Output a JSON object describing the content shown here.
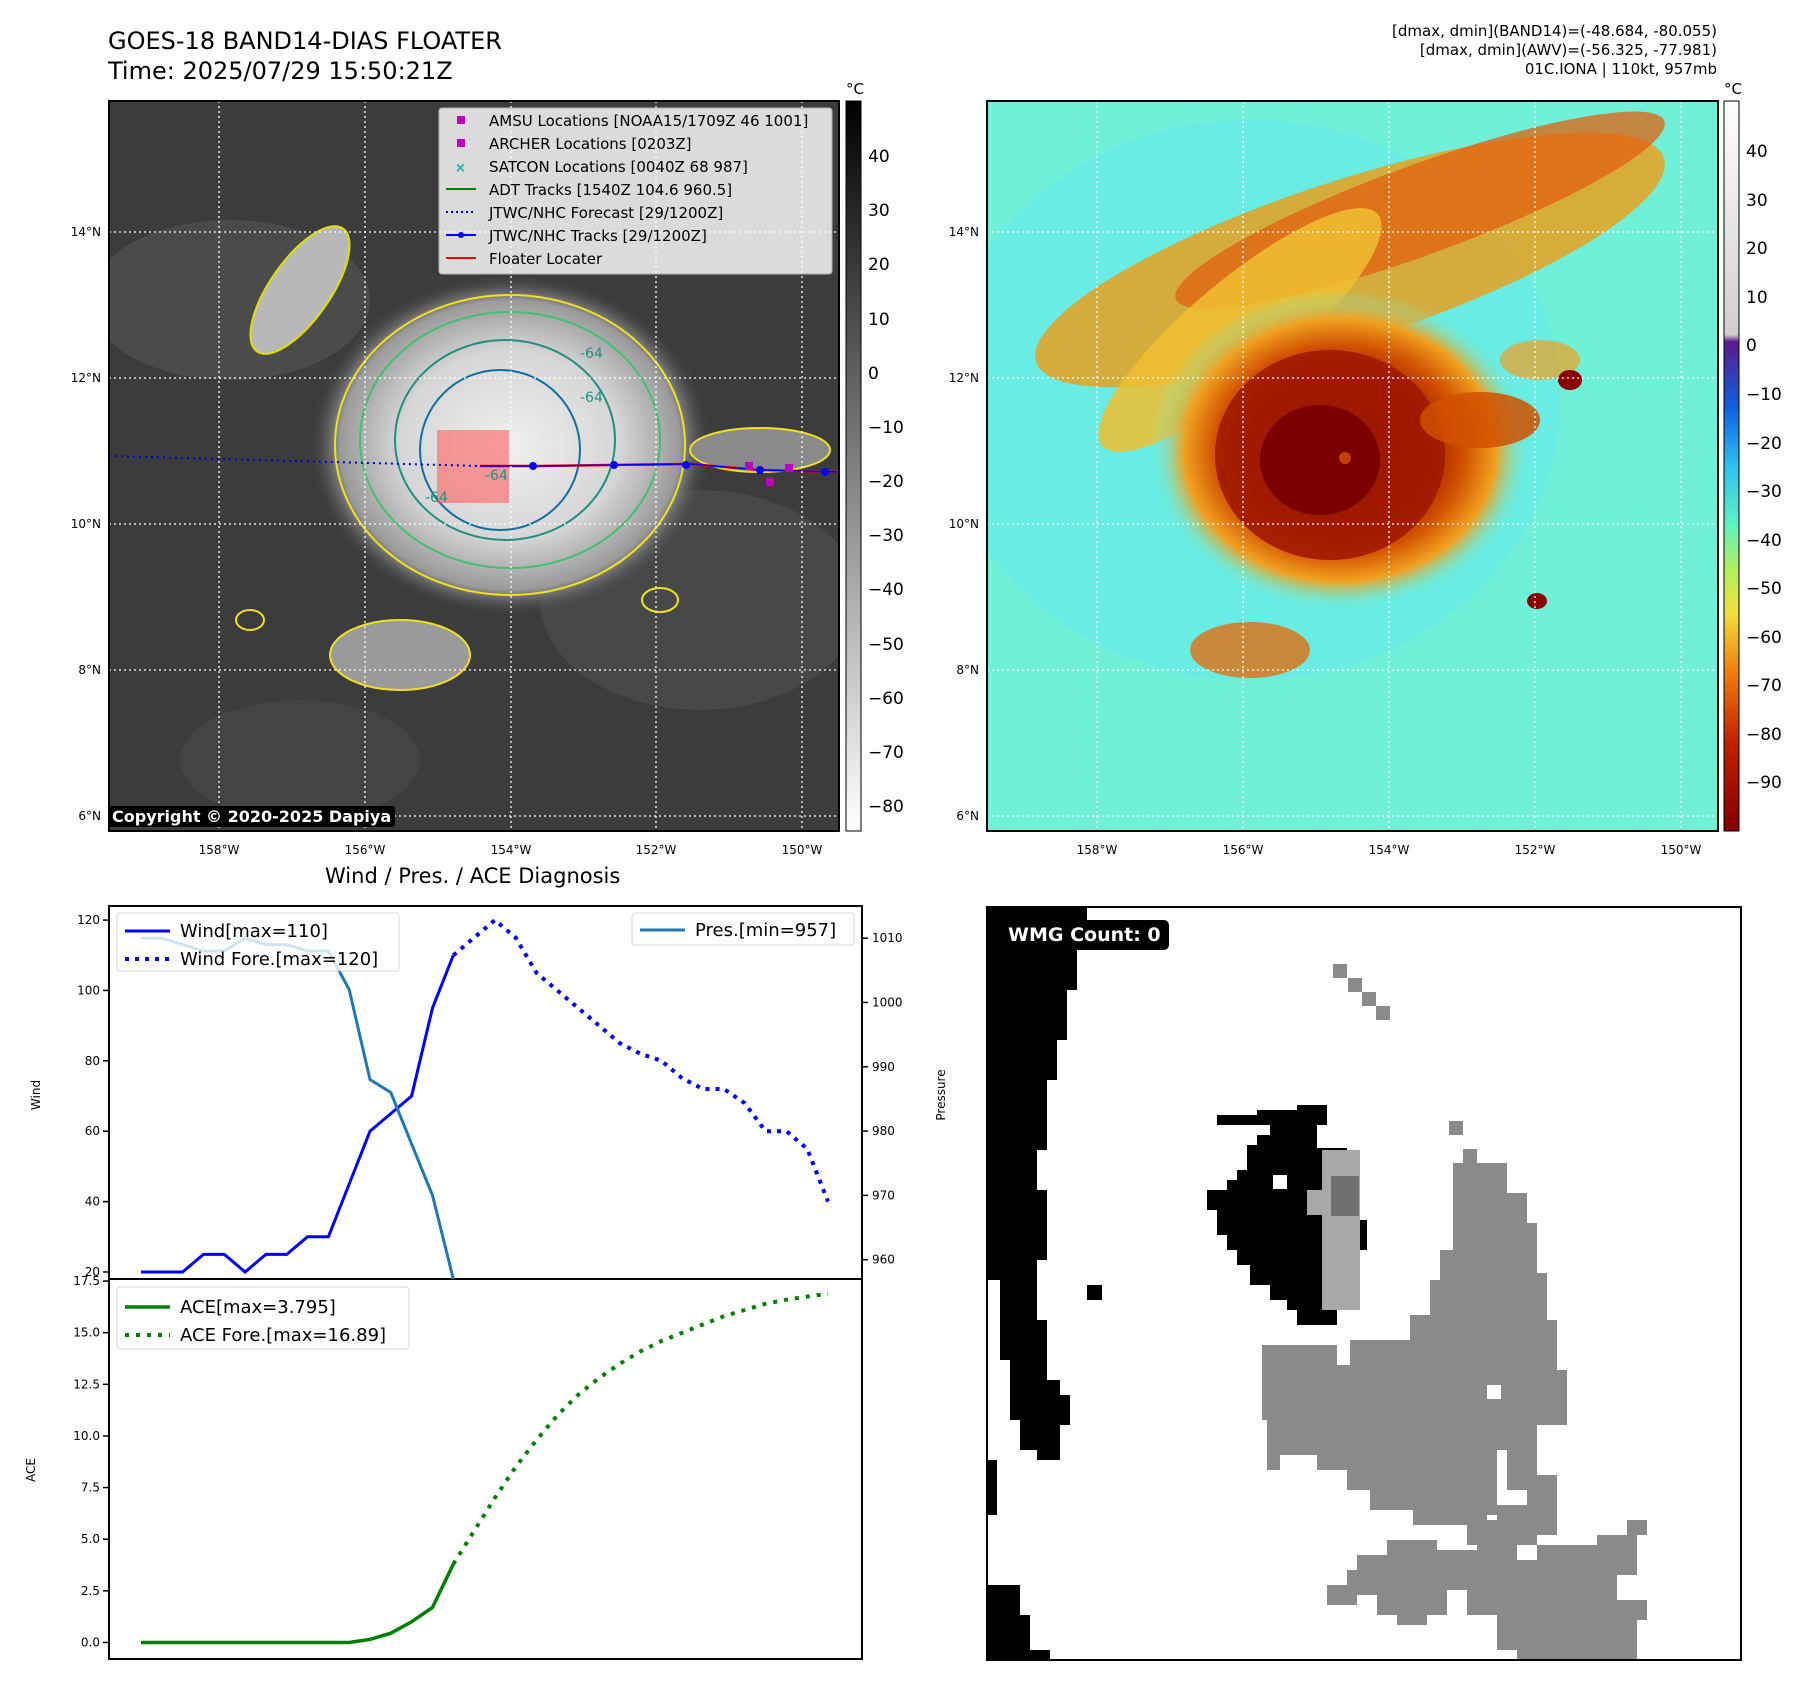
{
  "header": {
    "title_line1": "GOES-18 BAND14-DIAS FLOATER",
    "title_line2": "Time: 2025/07/29 15:50:21Z",
    "stats_line1": "[dmax, dmin](BAND14)=(-48.684, -80.055)",
    "stats_line2": "[dmax, dmin](AWV)=(-56.325, -77.981)",
    "stats_line3": "01C.IONA | 110kt, 957mb"
  },
  "maps": {
    "unit": "°C",
    "lon_ticks": [
      "158°W",
      "156°W",
      "154°W",
      "152°W",
      "150°W"
    ],
    "lat_ticks": [
      "14°N",
      "12°N",
      "10°N",
      "8°N",
      "6°N"
    ],
    "left_colorbar_ticks": [
      "40",
      "30",
      "20",
      "10",
      "0",
      "−10",
      "−20",
      "−30",
      "−40",
      "−50",
      "−60",
      "−70",
      "−80"
    ],
    "right_colorbar_ticks": [
      "40",
      "30",
      "20",
      "10",
      "0",
      "−10",
      "−20",
      "−30",
      "−40",
      "−50",
      "−60",
      "−70",
      "−80",
      "−90"
    ],
    "contour_labels": [
      "-64",
      "-64",
      "-64",
      "-64"
    ],
    "legend": [
      {
        "label": "AMSU Locations [NOAA15/1709Z 46 1001]",
        "color": "#c000c0",
        "marker": "square"
      },
      {
        "label": "ARCHER Locations [0203Z]",
        "color": "#c000c0",
        "marker": "square"
      },
      {
        "label": "SATCON Locations [0040Z 68 987]",
        "color": "#00b0b0",
        "marker": "x"
      },
      {
        "label": "ADT Tracks [1540Z 104.6 960.5]",
        "color": "#008000",
        "marker": "line"
      },
      {
        "label": "JTWC/NHC Forecast [29/1200Z]",
        "color": "#0000cc",
        "marker": "dotted"
      },
      {
        "label": "JTWC/NHC Tracks [29/1200Z]",
        "color": "#0000ff",
        "marker": "line-dot"
      },
      {
        "label": "Floater Locater",
        "color": "#ff0000",
        "marker": "line"
      }
    ],
    "copyright": "Copyright © 2020-2025 Dapiya"
  },
  "chart_data": [
    {
      "type": "line",
      "title": "Wind / Pres. / ACE Diagnosis",
      "ylabel": "Wind",
      "ylabel_right": "Pressure",
      "ylim": [
        18,
        124
      ],
      "ylim_right": [
        957,
        1015
      ],
      "yticks": [
        20,
        40,
        60,
        80,
        100,
        120
      ],
      "yticks_right": [
        960,
        970,
        980,
        990,
        1000,
        1010
      ],
      "series": [
        {
          "name": "Wind[max=110]",
          "axis": "left",
          "style": "solid",
          "color": "#0000ff",
          "x": [
            0,
            1,
            2,
            3,
            4,
            5,
            6,
            7,
            8,
            9,
            10,
            11,
            12,
            13,
            14,
            15,
            16,
            17
          ],
          "values": [
            20,
            20,
            20,
            25,
            25,
            20,
            25,
            25,
            30,
            30,
            45,
            60,
            65,
            70,
            95,
            110,
            null,
            null
          ]
        },
        {
          "name": "Wind Fore.[max=120]",
          "axis": "left",
          "style": "dotted",
          "color": "#0000ff",
          "x": [
            15,
            16,
            17,
            18,
            19,
            20,
            21,
            22,
            23,
            24,
            25,
            26,
            27,
            28,
            29,
            30,
            31,
            32,
            33
          ],
          "values": [
            110,
            115,
            120,
            115,
            105,
            100,
            95,
            90,
            85,
            82,
            80,
            75,
            72,
            72,
            68,
            60,
            60,
            55,
            40
          ]
        },
        {
          "name": "Pres.[min=957]",
          "axis": "right",
          "style": "solid",
          "color": "#1f77b4",
          "x": [
            0,
            1,
            2,
            3,
            4,
            5,
            6,
            7,
            8,
            9,
            10,
            11,
            12,
            13,
            14,
            15
          ],
          "values": [
            1010,
            1010,
            1009,
            1008,
            1008,
            1010,
            1009,
            1009,
            1008,
            1008,
            1002,
            988,
            986,
            978,
            970,
            957
          ]
        }
      ]
    },
    {
      "type": "line",
      "ylabel": "ACE",
      "ylim": [
        -0.8,
        17.6
      ],
      "yticks": [
        "0.0",
        "2.5",
        "5.0",
        "7.5",
        "10.0",
        "12.5",
        "15.0",
        "17.5"
      ],
      "series": [
        {
          "name": "ACE[max=3.795]",
          "style": "solid",
          "color": "#008000",
          "x": [
            0,
            2,
            4,
            6,
            8,
            10,
            11,
            12,
            13,
            14,
            15
          ],
          "values": [
            0,
            0,
            0,
            0,
            0,
            0,
            0.15,
            0.45,
            1.0,
            1.7,
            3.795
          ]
        },
        {
          "name": "ACE Fore.[max=16.89]",
          "style": "dotted",
          "color": "#008000",
          "x": [
            15,
            16,
            17,
            18,
            19,
            20,
            21,
            22,
            23,
            24,
            25,
            26,
            27,
            28,
            29,
            30,
            31,
            32,
            33
          ],
          "values": [
            3.795,
            5.4,
            7.0,
            8.5,
            9.8,
            11.0,
            12.0,
            12.8,
            13.5,
            14.1,
            14.6,
            15.0,
            15.4,
            15.8,
            16.1,
            16.4,
            16.6,
            16.75,
            16.89
          ]
        }
      ]
    }
  ],
  "wmg": {
    "label": "WMG Count: 0"
  }
}
